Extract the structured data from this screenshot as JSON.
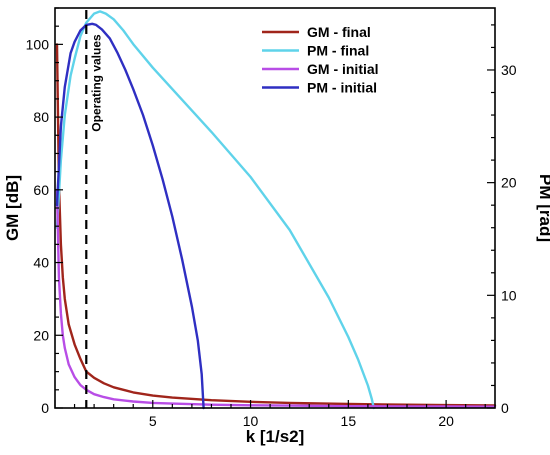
{
  "chart_data": {
    "type": "line",
    "title": "",
    "xlabel": "k [1/s2]",
    "ylabel_left": "GM [dB]",
    "ylabel_right": "PM [rad]",
    "xlim": [
      0,
      22.5
    ],
    "ylim_left": [
      0,
      110
    ],
    "ylim_right": [
      0,
      35.5
    ],
    "x_ticks": [
      5,
      10,
      15,
      20
    ],
    "x_ticks_labeled": [
      "5",
      "10",
      "15",
      "20"
    ],
    "y_left_ticks": [
      0,
      20,
      40,
      60,
      80,
      100
    ],
    "y_left_tick_labels": [
      "0",
      "20",
      "40",
      "60",
      "80",
      "100"
    ],
    "y_right_ticks": [
      0,
      10,
      20,
      30
    ],
    "y_right_tick_labels": [
      "0",
      "10",
      "20",
      "30"
    ],
    "grid": false,
    "legend_position": "top-right",
    "annotation": {
      "text": "Operating values",
      "x": 1.6
    },
    "series": [
      {
        "name": "GM - final",
        "axis": "left",
        "color": "#a0251b",
        "x": [
          0.1,
          0.2,
          0.3,
          0.4,
          0.5,
          0.7,
          1,
          1.3,
          1.6,
          2,
          2.5,
          3,
          4,
          5,
          6,
          8,
          10,
          12,
          15,
          18,
          20,
          22.5
        ],
        "y": [
          100,
          62,
          45,
          36,
          30,
          23,
          17.5,
          13.5,
          10,
          8.3,
          6.8,
          5.7,
          4.3,
          3.4,
          2.85,
          2.15,
          1.7,
          1.4,
          1.1,
          0.9,
          0.8,
          0.7
        ]
      },
      {
        "name": "PM - final",
        "axis": "right",
        "color": "#5fd3ea",
        "x": [
          0.1,
          0.3,
          0.5,
          0.8,
          1,
          1.3,
          1.6,
          2,
          2.3,
          2.6,
          3,
          3.5,
          4,
          5,
          6,
          8,
          10,
          12,
          14,
          15,
          15.5,
          16,
          16.2,
          16.3
        ],
        "y": [
          16,
          22,
          26,
          29.5,
          31,
          33,
          34.2,
          35,
          35.2,
          35,
          34.5,
          33.5,
          32.3,
          30.2,
          28.3,
          24.5,
          20.5,
          15.8,
          9.8,
          6.3,
          4.3,
          2,
          0.8,
          0
        ]
      },
      {
        "name": "GM - initial",
        "axis": "left",
        "color": "#b84de6",
        "x": [
          0.1,
          0.2,
          0.3,
          0.4,
          0.5,
          0.7,
          1,
          1.3,
          1.6,
          2,
          2.5,
          3,
          4,
          5,
          6,
          8,
          10,
          12,
          15,
          18,
          20,
          22.5
        ],
        "y": [
          60,
          36,
          26,
          20,
          16.5,
          12,
          8.5,
          6.3,
          5,
          3.8,
          3,
          2.4,
          1.8,
          1.4,
          1.2,
          0.9,
          0.75,
          0.65,
          0.5,
          0.45,
          0.4,
          0.35
        ]
      },
      {
        "name": "PM - initial",
        "axis": "right",
        "color": "#2f2fc2",
        "x": [
          0.1,
          0.3,
          0.5,
          0.8,
          1,
          1.3,
          1.6,
          1.9,
          2.1,
          2.4,
          2.8,
          3.2,
          3.6,
          4,
          4.5,
          5,
          5.5,
          6,
          6.5,
          7,
          7.3,
          7.5,
          7.6
        ],
        "y": [
          18,
          25,
          28.5,
          31.5,
          32.5,
          33.5,
          34,
          34.1,
          34.0,
          33.6,
          32.8,
          31.5,
          30,
          28.3,
          26,
          23.3,
          20.3,
          17,
          13.2,
          9,
          6,
          3,
          0
        ]
      }
    ]
  }
}
